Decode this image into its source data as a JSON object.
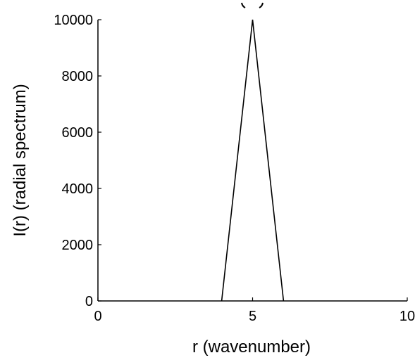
{
  "chart_data": {
    "type": "line",
    "title": "",
    "xlabel": "r (wavenumber)",
    "ylabel": "I(r) (radial spectrum)",
    "xlim": [
      0,
      10
    ],
    "ylim": [
      0,
      10000
    ],
    "grid": false,
    "x_ticks": [
      0,
      5,
      10
    ],
    "y_ticks": [
      0,
      2000,
      4000,
      6000,
      8000,
      10000
    ],
    "x_tick_labels": [
      "0",
      "5",
      "10"
    ],
    "y_tick_labels": [
      "0",
      "2000",
      "4000",
      "6000",
      "8000",
      "10000"
    ],
    "series": [
      {
        "x": [
          4,
          5,
          6
        ],
        "y": [
          0,
          10000,
          0
        ]
      }
    ],
    "colors": {
      "line": "#000000",
      "axis": "#000000"
    }
  }
}
